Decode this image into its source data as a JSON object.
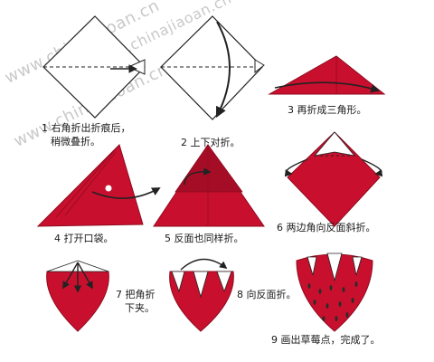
{
  "watermark": "www.chinajiaoan.cn",
  "watermark_small": "jiaoan.com",
  "colors": {
    "paper_red": "#c8102e",
    "dark_red": "#8e0a1e",
    "outline": "#222222",
    "seed": "#2b2b2b"
  },
  "steps": [
    {
      "num": "1",
      "text": "右角折出折痕后，",
      "text2": "稍微叠折。"
    },
    {
      "num": "2",
      "text": "上下对折。"
    },
    {
      "num": "3",
      "text": "再折成三角形。"
    },
    {
      "num": "4",
      "text": "打开口袋。"
    },
    {
      "num": "5",
      "text": "反面也同样折。"
    },
    {
      "num": "6",
      "text": "两边角向反面斜折。"
    },
    {
      "num": "7",
      "text": "把角折",
      "text2": "下夹。"
    },
    {
      "num": "8",
      "text": "向反面折。"
    },
    {
      "num": "9",
      "text": "画出草莓点，完成了。"
    }
  ]
}
